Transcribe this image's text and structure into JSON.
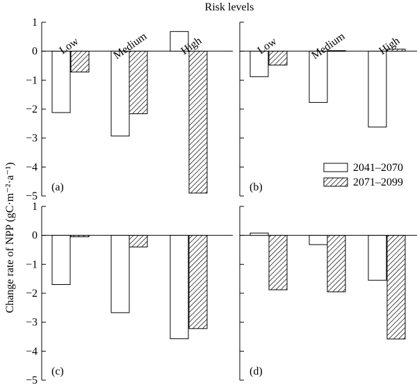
{
  "chart_data": {
    "type": "bar",
    "title": "Risk levels",
    "ylabel": "Change rate of NPP (gC·m⁻²·a⁻¹)",
    "categories": [
      "Low",
      "Medium",
      "High"
    ],
    "ylim_top": [
      -5,
      1
    ],
    "ylim_bottom": [
      -5,
      1
    ],
    "yticks": [
      1,
      0,
      -1,
      -2,
      -3,
      -4,
      -5
    ],
    "legend": {
      "placement": "right, panel (b)",
      "entries": [
        "2041–2070",
        "2071–2099"
      ]
    },
    "series_styles": {
      "2041–2070": "white",
      "2071–2099": "hatched"
    },
    "panels": [
      {
        "label": "(a)",
        "series": [
          {
            "name": "2041–2070",
            "values": [
              -2.12,
              -2.93,
              0.68
            ]
          },
          {
            "name": "2071–2099",
            "values": [
              -0.72,
              -2.16,
              -4.9
            ]
          }
        ]
      },
      {
        "label": "(b)",
        "series": [
          {
            "name": "2041–2070",
            "values": [
              -0.88,
              -1.77,
              -2.62
            ]
          },
          {
            "name": "2071–2099",
            "values": [
              -0.48,
              0.02,
              0.07
            ]
          }
        ]
      },
      {
        "label": "(c)",
        "series": [
          {
            "name": "2041–2070",
            "values": [
              -1.7,
              -2.67,
              -3.57
            ]
          },
          {
            "name": "2071–2099",
            "values": [
              -0.05,
              -0.4,
              -3.22
            ]
          }
        ]
      },
      {
        "label": "(d)",
        "series": [
          {
            "name": "2041–2070",
            "values": [
              0.08,
              -0.32,
              -1.55
            ]
          },
          {
            "name": "2071–2099",
            "values": [
              -1.88,
              -1.95,
              -3.58
            ]
          }
        ]
      }
    ]
  }
}
